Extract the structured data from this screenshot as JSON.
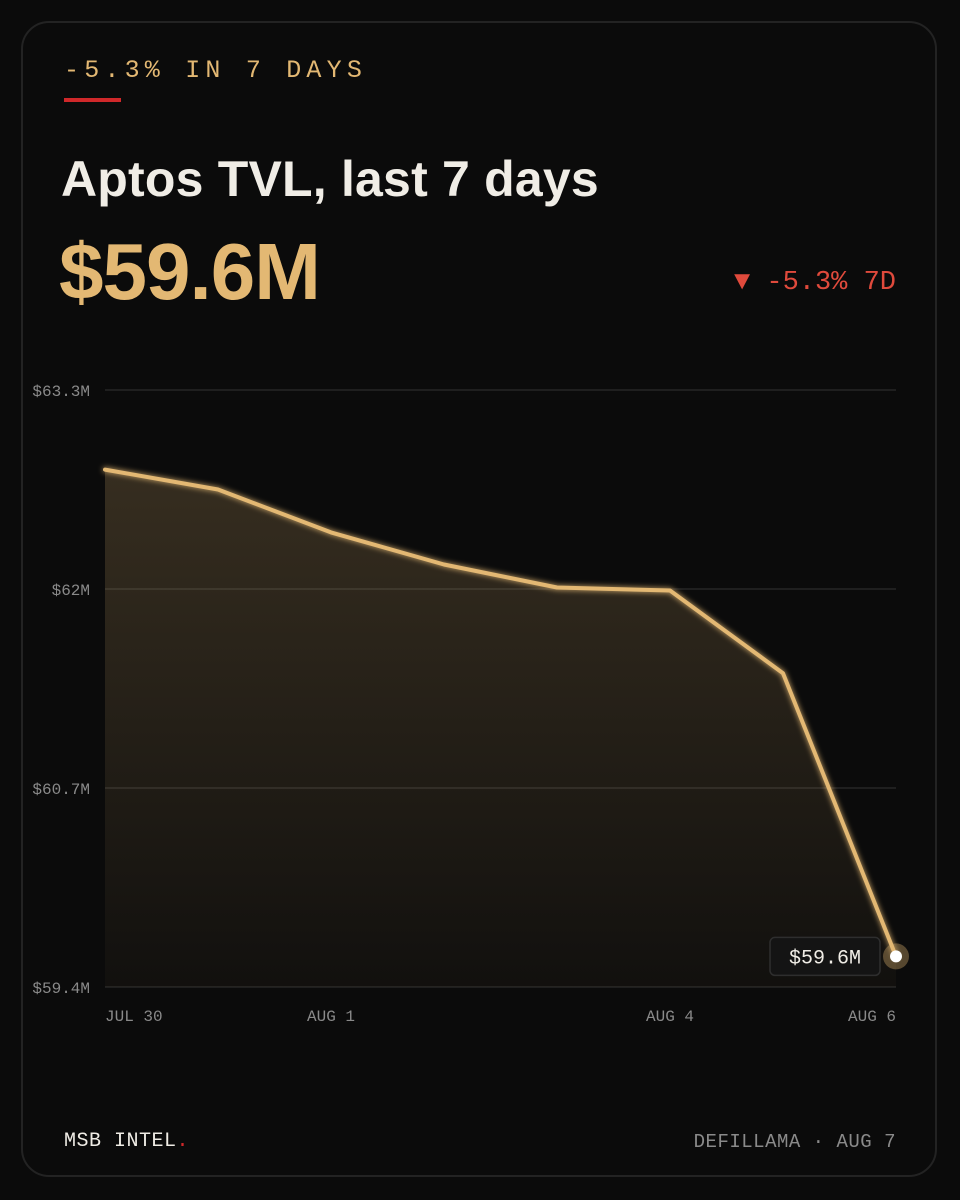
{
  "header": {
    "kicker": "-5.3% IN 7 DAYS",
    "title": "Aptos TVL, last 7 days",
    "value": "$59.6M",
    "change": "▼ -5.3% 7D"
  },
  "colors": {
    "accent": "#e3b873",
    "negative": "#e04a3c",
    "brand_dot": "#d0282a",
    "background": "#0b0b0b"
  },
  "chart_data": {
    "type": "area",
    "x": [
      "2024-07-30",
      "2024-07-31",
      "2024-08-01",
      "2024-08-02",
      "2024-08-03",
      "2024-08-04",
      "2024-08-05",
      "2024-08-06"
    ],
    "y": [
      62.78,
      62.65,
      62.37,
      62.16,
      62.01,
      61.99,
      61.45,
      59.6
    ],
    "yunit": "$M",
    "ylim": [
      59.4,
      63.3
    ],
    "yticks": [
      {
        "value": 63.3,
        "label": "$63.3M"
      },
      {
        "value": 62.0,
        "label": "$62M"
      },
      {
        "value": 60.7,
        "label": "$60.7M"
      },
      {
        "value": 59.4,
        "label": "$59.4M"
      }
    ],
    "xticks": [
      {
        "index": 0,
        "label": "JUL 30"
      },
      {
        "index": 2,
        "label": "AUG 1"
      },
      {
        "index": 5,
        "label": "AUG 4"
      },
      {
        "index": 7,
        "label": "AUG 6"
      }
    ],
    "grid": true,
    "last_value_label": "$59.6M"
  },
  "footer": {
    "brand": "MSB INTEL",
    "brand_dot": ".",
    "source": "DEFILLAMA · AUG 7"
  }
}
